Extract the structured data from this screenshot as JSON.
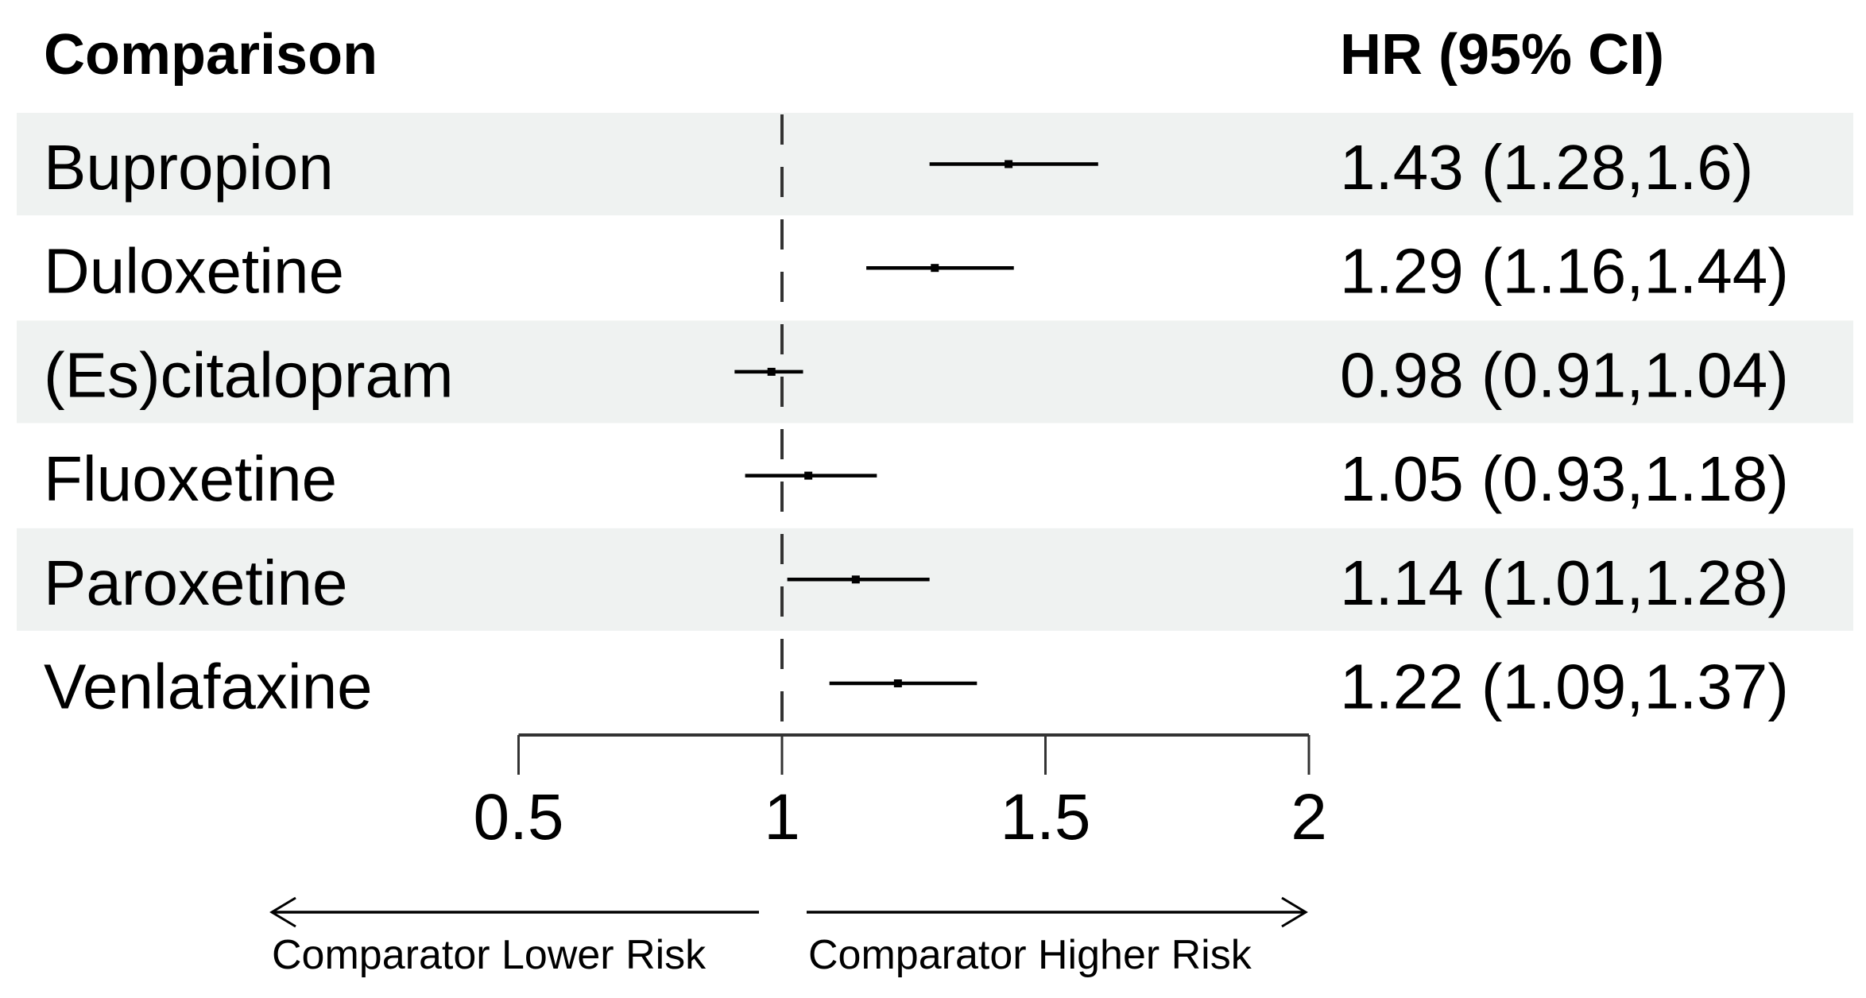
{
  "chart_data": {
    "type": "forest",
    "headers": {
      "label": "Comparison",
      "estimate": "HR (95% CI)"
    },
    "rows": [
      {
        "label": "Bupropion",
        "hr": 1.43,
        "lo": 1.28,
        "hi": 1.6,
        "text": "1.43 (1.28,1.6)"
      },
      {
        "label": "Duloxetine",
        "hr": 1.29,
        "lo": 1.16,
        "hi": 1.44,
        "text": "1.29 (1.16,1.44)"
      },
      {
        "label": "(Es)citalopram",
        "hr": 0.98,
        "lo": 0.91,
        "hi": 1.04,
        "text": "0.98 (0.91,1.04)"
      },
      {
        "label": "Fluoxetine",
        "hr": 1.05,
        "lo": 0.93,
        "hi": 1.18,
        "text": "1.05 (0.93,1.18)"
      },
      {
        "label": "Paroxetine",
        "hr": 1.14,
        "lo": 1.01,
        "hi": 1.28,
        "text": "1.14 (1.01,1.28)"
      },
      {
        "label": "Venlafaxine",
        "hr": 1.22,
        "lo": 1.09,
        "hi": 1.37,
        "text": "1.22 (1.09,1.37)"
      }
    ],
    "xlim": [
      0.5,
      2
    ],
    "xticks": [
      "0.5",
      "1",
      "1.5",
      "2"
    ],
    "reference_line": 1,
    "arrows": {
      "left": "Comparator Lower Risk",
      "right": "Comparator Higher Risk"
    },
    "colors": {
      "stripe": "#eff2f1",
      "ink": "#000000"
    }
  }
}
